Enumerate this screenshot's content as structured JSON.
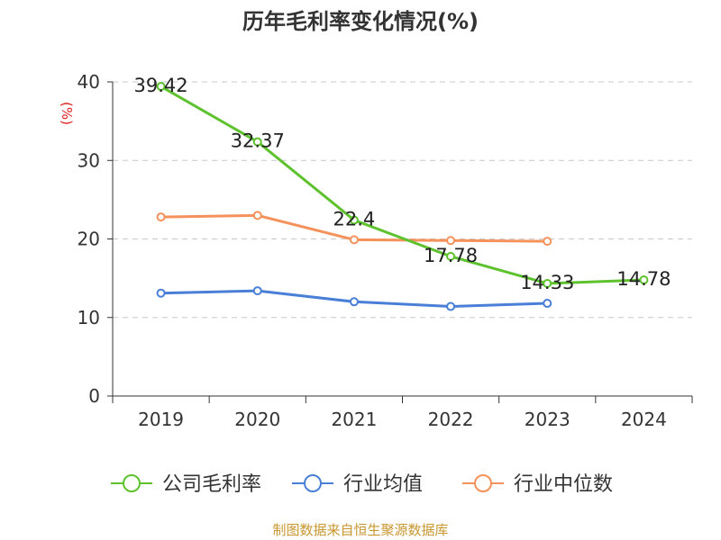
{
  "chart_data": {
    "type": "line",
    "title": "历年毛利率变化情况(%)",
    "ylabel": "(%)",
    "xlabel": "",
    "categories": [
      "2019",
      "2020",
      "2021",
      "2022",
      "2023",
      "2024"
    ],
    "ylim": [
      0,
      40
    ],
    "yticks": [
      0,
      10,
      20,
      30,
      40
    ],
    "grid": true,
    "legend_position": "bottom",
    "series": [
      {
        "name": "公司毛利率",
        "values": [
          39.42,
          32.37,
          22.4,
          17.78,
          14.33,
          14.78
        ],
        "labels": [
          "39.42",
          "32.37",
          "22.4",
          "17.78",
          "14.33",
          "14.78"
        ],
        "color": "#5ec22e"
      },
      {
        "name": "行业均值",
        "values": [
          13.1,
          13.4,
          12.0,
          11.4,
          11.8,
          null
        ],
        "color": "#4a7fd8"
      },
      {
        "name": "行业中位数",
        "values": [
          22.8,
          23.0,
          19.9,
          19.8,
          19.7,
          null
        ],
        "color": "#f5915a"
      }
    ]
  },
  "source": "制图数据来自恒生聚源数据库"
}
